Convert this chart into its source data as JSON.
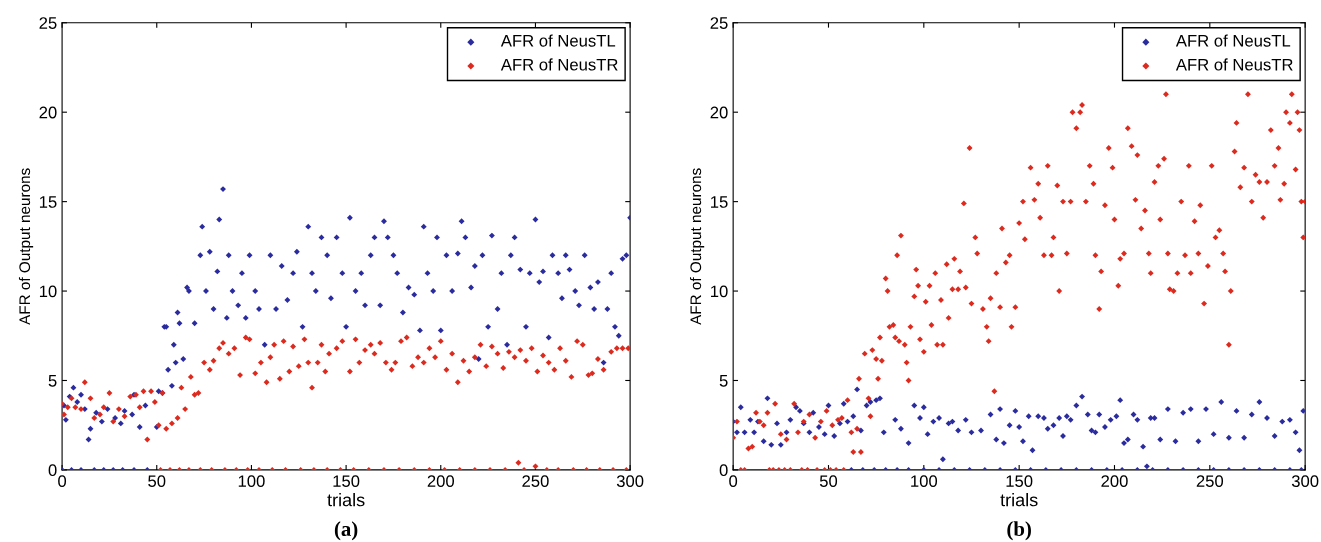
{
  "chart_data": [
    {
      "type": "scatter",
      "xlabel": "trials",
      "ylabel": "AFR of Output neurons",
      "annotations": [
        "(a)"
      ],
      "xlim": [
        0,
        300
      ],
      "xticks": [
        0,
        50,
        100,
        150,
        200,
        250,
        300
      ],
      "ylim": [
        0,
        25
      ],
      "yticks": [
        0,
        5,
        10,
        15,
        20,
        25
      ],
      "grid": false,
      "legend": "top right",
      "marker": "diamond",
      "series": [
        {
          "name": "AFR of NeusTL",
          "color": "#2b2ba0",
          "x": [
            1,
            2,
            4,
            6,
            8,
            10,
            12,
            14,
            15,
            18,
            21,
            24,
            28,
            31,
            33,
            37,
            38,
            41,
            44,
            50,
            51,
            53,
            54,
            55,
            56,
            58,
            59,
            60,
            61,
            62,
            64,
            66,
            67,
            70,
            73,
            74,
            76,
            78,
            80,
            82,
            83,
            85,
            87,
            88,
            90,
            93,
            95,
            97,
            99,
            102,
            104,
            107,
            110,
            113,
            116,
            119,
            122,
            124,
            127,
            130,
            132,
            134,
            137,
            140,
            142,
            145,
            148,
            150,
            152,
            155,
            158,
            160,
            163,
            165,
            168,
            170,
            172,
            175,
            177,
            180,
            183,
            186,
            189,
            191,
            193,
            196,
            198,
            200,
            203,
            206,
            209,
            211,
            213,
            216,
            218,
            220,
            222,
            225,
            227,
            230,
            232,
            235,
            237,
            239,
            242,
            245,
            247,
            250,
            252,
            254,
            257,
            259,
            262,
            264,
            266,
            268,
            271,
            273,
            276,
            279,
            281,
            283,
            286,
            288,
            290,
            292,
            294,
            296,
            298,
            300,
            0,
            5,
            10,
            17,
            22,
            27,
            32,
            38,
            45
          ],
          "values": [
            3.6,
            2.8,
            4.1,
            4.6,
            3.8,
            4.2,
            3.4,
            1.7,
            2.3,
            3.2,
            2.7,
            3.4,
            2.9,
            2.6,
            3.3,
            3.1,
            4.2,
            2.4,
            3.6,
            2.4,
            4.4,
            4.3,
            8.0,
            8.0,
            5.6,
            4.7,
            7.0,
            6.0,
            8.8,
            8.2,
            6.2,
            10.2,
            10.0,
            8.2,
            12.0,
            13.6,
            10.0,
            12.2,
            9.0,
            11.1,
            14.0,
            15.7,
            8.5,
            12.0,
            10.0,
            9.2,
            11.0,
            8.5,
            12.0,
            10.0,
            9.0,
            7.0,
            12.0,
            9.0,
            11.4,
            9.5,
            11.0,
            12.2,
            8.0,
            13.6,
            11.0,
            10.0,
            13.0,
            12.0,
            9.6,
            13.0,
            11.0,
            8.0,
            14.1,
            10.0,
            11.0,
            9.2,
            12.0,
            13.0,
            9.2,
            13.9,
            13.0,
            12.0,
            11.0,
            8.8,
            10.2,
            9.8,
            7.8,
            13.6,
            11.0,
            10.0,
            13.0,
            7.8,
            12.0,
            10.0,
            12.1,
            13.9,
            13.0,
            10.2,
            11.4,
            6.2,
            12.0,
            8.0,
            13.1,
            9.0,
            11.0,
            7.0,
            12.0,
            13.0,
            11.2,
            8.0,
            11.0,
            14.0,
            10.5,
            11.1,
            7.4,
            12.0,
            11.0,
            9.6,
            12.0,
            11.2,
            10.0,
            9.2,
            12.0,
            10.2,
            9.0,
            10.5,
            6.0,
            9.0,
            11.0,
            8.0,
            7.5,
            11.8,
            12.0,
            14.1,
            0,
            0,
            0,
            0,
            0,
            0,
            0,
            0,
            0
          ]
        },
        {
          "name": "AFR of NeusTR",
          "color": "#dd2a1e",
          "x": [
            0,
            1,
            3,
            5,
            7,
            10,
            12,
            15,
            17,
            20,
            22,
            25,
            27,
            30,
            33,
            36,
            39,
            41,
            43,
            45,
            47,
            49,
            51,
            53,
            55,
            58,
            61,
            63,
            65,
            68,
            70,
            72,
            75,
            78,
            80,
            83,
            85,
            88,
            91,
            94,
            97,
            99,
            102,
            105,
            108,
            110,
            112,
            115,
            117,
            120,
            122,
            125,
            128,
            130,
            132,
            135,
            137,
            139,
            141,
            145,
            148,
            152,
            155,
            157,
            160,
            163,
            165,
            168,
            171,
            174,
            176,
            179,
            182,
            185,
            188,
            191,
            194,
            197,
            200,
            203,
            206,
            209,
            212,
            215,
            218,
            221,
            224,
            227,
            230,
            233,
            236,
            239,
            242,
            245,
            248,
            251,
            254,
            257,
            260,
            263,
            266,
            269,
            272,
            275,
            278,
            280,
            283,
            286,
            290,
            293,
            296,
            299,
            52,
            57,
            62,
            67,
            73,
            79,
            86,
            92,
            98,
            104,
            111,
            118,
            126,
            133,
            140,
            147,
            154,
            162,
            170,
            178,
            186,
            194,
            202,
            210,
            218,
            226,
            234,
            241,
            244,
            250,
            256,
            262,
            270,
            277,
            284,
            291,
            298
          ],
          "values": [
            3.7,
            3.1,
            3.5,
            4.0,
            3.5,
            3.4,
            4.9,
            4.0,
            2.9,
            3.1,
            3.5,
            4.3,
            2.7,
            3.4,
            3.0,
            4.1,
            4.2,
            3.5,
            4.4,
            1.7,
            4.4,
            3.8,
            2.5,
            4.3,
            2.3,
            2.6,
            2.9,
            4.6,
            3.4,
            5.2,
            4.2,
            4.3,
            6.0,
            5.6,
            6.1,
            6.8,
            7.1,
            6.5,
            6.8,
            5.3,
            7.4,
            7.3,
            5.4,
            6.0,
            4.9,
            6.3,
            7.0,
            5.1,
            7.2,
            5.5,
            6.9,
            5.8,
            7.3,
            6.0,
            4.6,
            6.0,
            7.0,
            5.5,
            6.5,
            6.8,
            7.2,
            5.5,
            7.3,
            6.0,
            6.7,
            7.0,
            6.5,
            7.1,
            6.0,
            5.6,
            6.0,
            7.2,
            7.4,
            5.8,
            6.3,
            6.0,
            6.8,
            6.3,
            7.2,
            5.6,
            6.5,
            4.9,
            6.1,
            5.5,
            6.3,
            7.0,
            5.8,
            6.9,
            6.5,
            5.7,
            6.6,
            6.3,
            6.7,
            6.1,
            6.8,
            5.5,
            6.4,
            6.0,
            5.6,
            6.8,
            6.1,
            5.2,
            7.2,
            7.0,
            5.3,
            5.4,
            6.2,
            5.6,
            6.6,
            6.8,
            6.8,
            6.8,
            0,
            0,
            0,
            0,
            0,
            0,
            0,
            0,
            0,
            0,
            0,
            0,
            0,
            0,
            0,
            0,
            0,
            0,
            0,
            0,
            0,
            0,
            0,
            0,
            0,
            0,
            0,
            0.4,
            0,
            0.2,
            0,
            0,
            0,
            0,
            0,
            0,
            0
          ]
        }
      ]
    },
    {
      "type": "scatter",
      "xlabel": "trials",
      "ylabel": "AFR of Output neurons",
      "annotations": [
        "(b)"
      ],
      "xlim": [
        0,
        300
      ],
      "xticks": [
        0,
        50,
        100,
        150,
        200,
        250,
        300
      ],
      "ylim": [
        0,
        25
      ],
      "yticks": [
        0,
        5,
        10,
        15,
        20,
        25
      ],
      "grid": false,
      "legend": "top right",
      "marker": "diamond",
      "series": [
        {
          "name": "AFR of NeusTL",
          "color": "#2b2ba0",
          "x": [
            0,
            2,
            4,
            6,
            9,
            11,
            13,
            16,
            18,
            20,
            23,
            25,
            28,
            30,
            33,
            35,
            37,
            40,
            42,
            45,
            48,
            50,
            53,
            56,
            58,
            60,
            63,
            65,
            67,
            70,
            72,
            75,
            77,
            79,
            85,
            88,
            92,
            95,
            98,
            100,
            102,
            105,
            108,
            110,
            113,
            115,
            118,
            122,
            125,
            130,
            135,
            138,
            140,
            142,
            145,
            148,
            150,
            152,
            155,
            157,
            160,
            163,
            165,
            168,
            171,
            173,
            175,
            177,
            180,
            183,
            186,
            188,
            190,
            192,
            195,
            198,
            201,
            203,
            205,
            207,
            210,
            212,
            215,
            217,
            219,
            221,
            224,
            228,
            232,
            236,
            240,
            244,
            248,
            252,
            256,
            260,
            264,
            268,
            272,
            276,
            280,
            284,
            288,
            292,
            295,
            297,
            299,
            62,
            68,
            74,
            80,
            86,
            92,
            100,
            108,
            116,
            124,
            132,
            140,
            148,
            156,
            164,
            172,
            180,
            188,
            196,
            204,
            212,
            220,
            228,
            236,
            244,
            252,
            260,
            268,
            276,
            284,
            292,
            298
          ],
          "values": [
            2.7,
            2.1,
            3.5,
            2.1,
            2.8,
            2.1,
            2.7,
            1.6,
            4.0,
            1.4,
            2.6,
            1.4,
            2.1,
            2.8,
            3.5,
            3.3,
            2.6,
            2.1,
            3.2,
            2.4,
            2.0,
            3.6,
            1.9,
            2.6,
            3.7,
            2.7,
            3.0,
            4.5,
            2.2,
            3.6,
            3.8,
            3.9,
            4.0,
            2.1,
            2.8,
            2.3,
            1.5,
            3.6,
            2.9,
            3.5,
            2.0,
            2.7,
            2.9,
            0.6,
            2.6,
            2.7,
            2.2,
            2.8,
            2.1,
            2.2,
            3.1,
            1.7,
            3.4,
            1.5,
            2.5,
            3.3,
            2.4,
            1.6,
            3.0,
            1.1,
            3.0,
            2.9,
            2.3,
            2.5,
            2.9,
            1.9,
            3.0,
            2.8,
            3.6,
            4.1,
            3.1,
            2.2,
            2.1,
            3.1,
            2.4,
            2.8,
            3.0,
            3.9,
            1.5,
            1.7,
            3.1,
            2.8,
            1.3,
            0.2,
            2.9,
            2.9,
            1.7,
            3.4,
            1.6,
            3.2,
            3.4,
            1.6,
            3.4,
            2.0,
            3.8,
            1.8,
            3.3,
            1.8,
            3.1,
            3.8,
            2.9,
            1.9,
            2.7,
            2.8,
            2.1,
            1.1,
            3.3,
            0,
            0,
            0,
            0,
            0,
            0,
            0,
            0,
            0,
            0,
            0,
            0,
            0,
            0,
            0,
            0,
            0,
            0,
            0,
            0,
            0,
            0,
            0,
            0,
            0,
            0,
            0,
            0,
            0,
            0,
            0,
            0
          ]
        },
        {
          "name": "AFR of NeusTR",
          "color": "#dd2a1e",
          "x": [
            0,
            2,
            8,
            10,
            12,
            14,
            16,
            18,
            22,
            25,
            28,
            32,
            34,
            37,
            40,
            43,
            46,
            49,
            52,
            55,
            57,
            60,
            62,
            63,
            65,
            66,
            67,
            69,
            71,
            72,
            73,
            75,
            76,
            77,
            78,
            80,
            81,
            82,
            84,
            85,
            86,
            87,
            88,
            90,
            91,
            92,
            93,
            95,
            96,
            97,
            98,
            100,
            101,
            103,
            104,
            106,
            107,
            109,
            110,
            112,
            113,
            115,
            116,
            118,
            119,
            121,
            122,
            124,
            125,
            127,
            128,
            131,
            133,
            134,
            135,
            137,
            138,
            140,
            141,
            143,
            145,
            146,
            148,
            150,
            152,
            153,
            156,
            158,
            160,
            161,
            163,
            165,
            167,
            168,
            170,
            171,
            173,
            175,
            177,
            178,
            180,
            182,
            183,
            185,
            187,
            189,
            190,
            192,
            193,
            195,
            197,
            199,
            200,
            202,
            203,
            205,
            207,
            209,
            211,
            212,
            214,
            216,
            218,
            219,
            221,
            223,
            224,
            226,
            227,
            228,
            229,
            231,
            233,
            235,
            237,
            239,
            240,
            242,
            244,
            245,
            247,
            249,
            251,
            253,
            255,
            257,
            258,
            260,
            261,
            263,
            264,
            266,
            268,
            270,
            272,
            274,
            276,
            278,
            280,
            282,
            284,
            286,
            287,
            289,
            290,
            292,
            293,
            295,
            296,
            297,
            298,
            299,
            300,
            4,
            6,
            19,
            21,
            24,
            27,
            30,
            36,
            39,
            44,
            48,
            51,
            54,
            58
          ],
          "values": [
            1.8,
            2.7,
            1.2,
            1.3,
            3.2,
            2.7,
            2.5,
            3.2,
            3.7,
            2.0,
            1.7,
            3.7,
            2.1,
            2.7,
            3.1,
            1.8,
            2.7,
            3.3,
            2.5,
            2.8,
            2.9,
            3.9,
            2.1,
            1.0,
            2.3,
            5.1,
            1.0,
            6.5,
            4.0,
            3.0,
            6.7,
            6.2,
            5.1,
            7.4,
            6.1,
            10.7,
            10.0,
            8.0,
            8.1,
            7.4,
            12.0,
            7.2,
            13.1,
            7.0,
            6.0,
            5.0,
            8.0,
            9.7,
            11.2,
            10.3,
            7.3,
            6.6,
            9.4,
            10.3,
            8.1,
            11.0,
            7.0,
            9.5,
            7.0,
            11.5,
            8.5,
            10.1,
            11.8,
            10.1,
            11.1,
            14.9,
            10.2,
            18.0,
            9.3,
            13.0,
            12.1,
            9.0,
            8.0,
            7.2,
            9.6,
            4.4,
            11.0,
            9.1,
            13.5,
            11.6,
            12.0,
            8.0,
            9.1,
            13.8,
            15.0,
            12.9,
            16.9,
            15.1,
            16.0,
            14.1,
            12.0,
            17.0,
            12.0,
            13.0,
            15.9,
            10.0,
            15.0,
            12.1,
            15.0,
            20.0,
            19.1,
            20.0,
            20.4,
            15.0,
            17.0,
            16.0,
            12.0,
            9.0,
            11.1,
            14.8,
            18.0,
            16.9,
            14.0,
            10.3,
            11.8,
            12.1,
            19.1,
            18.1,
            15.1,
            17.6,
            13.5,
            14.5,
            12.1,
            11.0,
            16.1,
            17.0,
            14.0,
            17.4,
            21.0,
            12.1,
            10.1,
            10.0,
            11.0,
            15.0,
            12.0,
            17.0,
            11.0,
            13.9,
            12.1,
            14.8,
            9.3,
            11.4,
            17.0,
            13.0,
            13.4,
            12.1,
            11.1,
            7.0,
            10.0,
            17.8,
            19.4,
            15.8,
            16.9,
            21.0,
            15.0,
            16.5,
            16.1,
            14.1,
            16.1,
            19.0,
            17.0,
            18.0,
            15.1,
            16.0,
            20.0,
            19.4,
            21.0,
            16.8,
            20.0,
            19.0,
            15.0,
            13.0,
            15.0,
            0,
            0,
            0,
            0,
            0,
            0,
            0,
            0,
            0,
            0,
            0,
            0,
            0,
            0
          ]
        }
      ]
    }
  ]
}
